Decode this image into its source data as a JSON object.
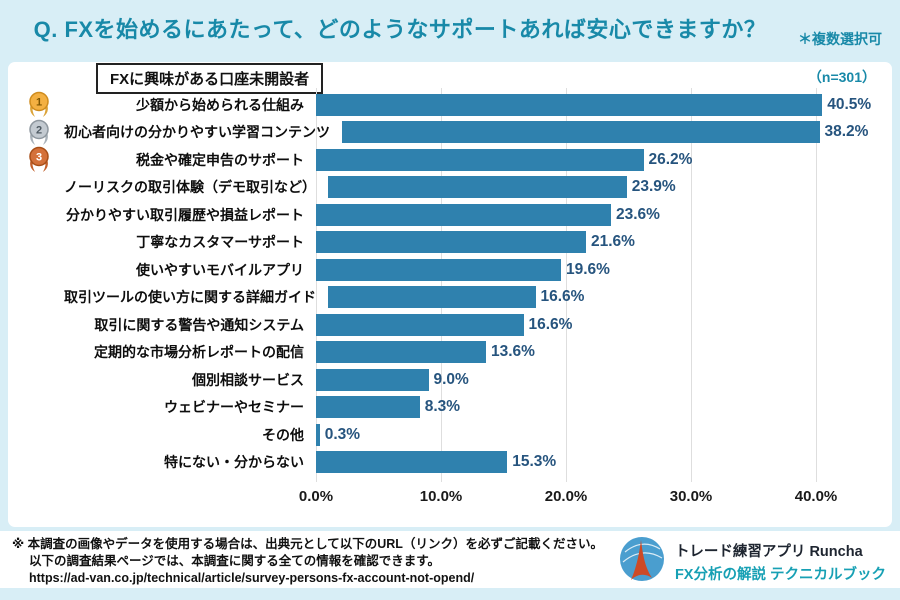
{
  "header": {
    "title": "Q. FXを始めるにあたって、どのようなサポートあれば安心できますか？",
    "note": "＊複数選択可"
  },
  "panel": {
    "group_label": "FXに興味がある口座未開設者",
    "sample_size": "（n=301）"
  },
  "chart_data": {
    "type": "bar",
    "orientation": "horizontal",
    "title": "Q. FXを始めるにあたって、どのようなサポートあれば安心できますか？",
    "categories": [
      "少額から始められる仕組み",
      "初心者向けの分かりやすい学習コンテンツ",
      "税金や確定申告のサポート",
      "ノーリスクの取引体験（デモ取引など）",
      "分かりやすい取引履歴や損益レポート",
      "丁寧なカスタマーサポート",
      "使いやすいモバイルアプリ",
      "取引ツールの使い方に関する詳細ガイド",
      "取引に関する警告や通知システム",
      "定期的な市場分析レポートの配信",
      "個別相談サービス",
      "ウェビナーやセミナー",
      "その他",
      "特にない・分からない"
    ],
    "values": [
      40.5,
      38.2,
      26.2,
      23.9,
      23.6,
      21.6,
      19.6,
      16.6,
      16.6,
      13.6,
      9.0,
      8.3,
      0.3,
      15.3
    ],
    "value_labels": [
      "40.5%",
      "38.2%",
      "26.2%",
      "23.9%",
      "23.6%",
      "21.6%",
      "19.6%",
      "16.6%",
      "16.6%",
      "13.6%",
      "9.0%",
      "8.3%",
      "0.3%",
      "15.3%"
    ],
    "medals": [
      {
        "rank": "1",
        "color_name": "gold"
      },
      {
        "rank": "2",
        "color_name": "silver"
      },
      {
        "rank": "3",
        "color_name": "bronze"
      }
    ],
    "x_ticks": [
      "0.0%",
      "10.0%",
      "20.0%",
      "30.0%",
      "40.0%"
    ],
    "xlim": [
      0,
      40
    ],
    "grid": "vertical",
    "bar_color": "#2f81ae",
    "value_label_color": "#26547e"
  },
  "footer": {
    "line1": "※ 本調査の画像やデータを使用する場合は、出典元として以下のURL（リンク）を必ずご記載ください。",
    "line2": "以下の調査結果ページでは、本調査に関する全ての情報を確認できます。",
    "url": "https://ad-van.co.jp/technical/article/survey-persons-fx-account-not-opend/",
    "brand": {
      "line1": "トレード練習アプリ  Runcha",
      "line2": "FX分析の解説  テクニカルブック"
    }
  },
  "colors": {
    "background": "#d8eef6",
    "accent_teal": "#1889a8",
    "bar_blue": "#2f81ae"
  }
}
